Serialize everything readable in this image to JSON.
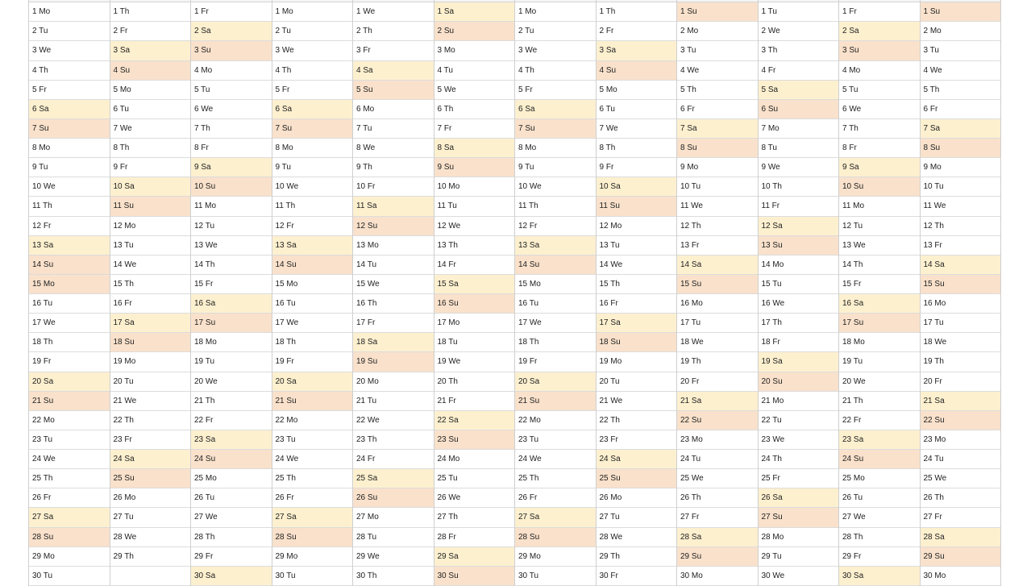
{
  "colors": {
    "saturday": "#fdf0cf",
    "sunday": "#f9e1cb",
    "holiday": "#f9e1cb",
    "grid": "#cfcfcf"
  },
  "months": [
    {
      "highlighted": [
        "15 Mo"
      ],
      "days": [
        "1 Mo",
        "2 Tu",
        "3 We",
        "4 Th",
        "5 Fr",
        "6 Sa",
        "7 Su",
        "8 Mo",
        "9 Tu",
        "10 We",
        "11 Th",
        "12 Fr",
        "13 Sa",
        "14 Su",
        "15 Mo",
        "16 Tu",
        "17 We",
        "18 Th",
        "19 Fr",
        "20 Sa",
        "21 Su",
        "22 Mo",
        "23 Tu",
        "24 We",
        "25 Th",
        "26 Fr",
        "27 Sa",
        "28 Su",
        "29 Mo",
        "30 Tu"
      ]
    },
    {
      "highlighted": [],
      "days": [
        "1 Th",
        "2 Fr",
        "3 Sa",
        "4 Su",
        "5 Mo",
        "6 Tu",
        "7 We",
        "8 Th",
        "9 Fr",
        "10 Sa",
        "11 Su",
        "12 Mo",
        "13 Tu",
        "14 We",
        "15 Th",
        "16 Fr",
        "17 Sa",
        "18 Su",
        "19 Mo",
        "20 Tu",
        "21 We",
        "22 Th",
        "23 Fr",
        "24 Sa",
        "25 Su",
        "26 Mo",
        "27 Tu",
        "28 We",
        "29 Th"
      ]
    },
    {
      "highlighted": [],
      "days": [
        "1 Fr",
        "2 Sa",
        "3 Su",
        "4 Mo",
        "5 Tu",
        "6 We",
        "7 Th",
        "8 Fr",
        "9 Sa",
        "10 Su",
        "11 Mo",
        "12 Tu",
        "13 We",
        "14 Th",
        "15 Fr",
        "16 Sa",
        "17 Su",
        "18 Mo",
        "19 Tu",
        "20 We",
        "21 Th",
        "22 Fr",
        "23 Sa",
        "24 Su",
        "25 Mo",
        "26 Tu",
        "27 We",
        "28 Th",
        "29 Fr",
        "30 Sa"
      ]
    },
    {
      "highlighted": [],
      "days": [
        "1 Mo",
        "2 Tu",
        "3 We",
        "4 Th",
        "5 Fr",
        "6 Sa",
        "7 Su",
        "8 Mo",
        "9 Tu",
        "10 We",
        "11 Th",
        "12 Fr",
        "13 Sa",
        "14 Su",
        "15 Mo",
        "16 Tu",
        "17 We",
        "18 Th",
        "19 Fr",
        "20 Sa",
        "21 Su",
        "22 Mo",
        "23 Tu",
        "24 We",
        "25 Th",
        "26 Fr",
        "27 Sa",
        "28 Su",
        "29 Mo",
        "30 Tu"
      ]
    },
    {
      "highlighted": [],
      "days": [
        "1 We",
        "2 Th",
        "3 Fr",
        "4 Sa",
        "5 Su",
        "6 Mo",
        "7 Tu",
        "8 We",
        "9 Th",
        "10 Fr",
        "11 Sa",
        "12 Su",
        "13 Mo",
        "14 Tu",
        "15 We",
        "16 Th",
        "17 Fr",
        "18 Sa",
        "19 Su",
        "20 Mo",
        "21 Tu",
        "22 We",
        "23 Th",
        "24 Fr",
        "25 Sa",
        "26 Su",
        "27 Mo",
        "28 Tu",
        "29 We",
        "30 Th"
      ]
    },
    {
      "highlighted": [],
      "days": [
        "1 Sa",
        "2 Su",
        "3 Mo",
        "4 Tu",
        "5 We",
        "6 Th",
        "7 Fr",
        "8 Sa",
        "9 Su",
        "10 Mo",
        "11 Tu",
        "12 We",
        "13 Th",
        "14 Fr",
        "15 Sa",
        "16 Su",
        "17 Mo",
        "18 Tu",
        "19 We",
        "20 Th",
        "21 Fr",
        "22 Sa",
        "23 Su",
        "24 Mo",
        "25 Tu",
        "26 We",
        "27 Th",
        "28 Fr",
        "29 Sa",
        "30 Su"
      ]
    },
    {
      "highlighted": [],
      "days": [
        "1 Mo",
        "2 Tu",
        "3 We",
        "4 Th",
        "5 Fr",
        "6 Sa",
        "7 Su",
        "8 Mo",
        "9 Tu",
        "10 We",
        "11 Th",
        "12 Fr",
        "13 Sa",
        "14 Su",
        "15 Mo",
        "16 Tu",
        "17 We",
        "18 Th",
        "19 Fr",
        "20 Sa",
        "21 Su",
        "22 Mo",
        "23 Tu",
        "24 We",
        "25 Th",
        "26 Fr",
        "27 Sa",
        "28 Su",
        "29 Mo",
        "30 Tu"
      ]
    },
    {
      "highlighted": [],
      "days": [
        "1 Th",
        "2 Fr",
        "3 Sa",
        "4 Su",
        "5 Mo",
        "6 Tu",
        "7 We",
        "8 Th",
        "9 Fr",
        "10 Sa",
        "11 Su",
        "12 Mo",
        "13 Tu",
        "14 We",
        "15 Th",
        "16 Fr",
        "17 Sa",
        "18 Su",
        "19 Mo",
        "20 Tu",
        "21 We",
        "22 Th",
        "23 Fr",
        "24 Sa",
        "25 Su",
        "26 Mo",
        "27 Tu",
        "28 We",
        "29 Th",
        "30 Fr"
      ]
    },
    {
      "highlighted": [],
      "days": [
        "1 Su",
        "2 Mo",
        "3 Tu",
        "4 We",
        "5 Th",
        "6 Fr",
        "7 Sa",
        "8 Su",
        "9 Mo",
        "10 Tu",
        "11 We",
        "12 Th",
        "13 Fr",
        "14 Sa",
        "15 Su",
        "16 Mo",
        "17 Tu",
        "18 We",
        "19 Th",
        "20 Fr",
        "21 Sa",
        "22 Su",
        "23 Mo",
        "24 Tu",
        "25 We",
        "26 Th",
        "27 Fr",
        "28 Sa",
        "29 Su",
        "30 Mo"
      ]
    },
    {
      "highlighted": [],
      "days": [
        "1 Tu",
        "2 We",
        "3 Th",
        "4 Fr",
        "5 Sa",
        "6 Su",
        "7 Mo",
        "8 Tu",
        "9 We",
        "10 Th",
        "11 Fr",
        "12 Sa",
        "13 Su",
        "14 Mo",
        "15 Tu",
        "16 We",
        "17 Th",
        "18 Fr",
        "19 Sa",
        "20 Su",
        "21 Mo",
        "22 Tu",
        "23 We",
        "24 Th",
        "25 Fr",
        "26 Sa",
        "27 Su",
        "28 Mo",
        "29 Tu",
        "30 We"
      ]
    },
    {
      "highlighted": [],
      "days": [
        "1 Fr",
        "2 Sa",
        "3 Su",
        "4 Mo",
        "5 Tu",
        "6 We",
        "7 Th",
        "8 Fr",
        "9 Sa",
        "10 Su",
        "11 Mo",
        "12 Tu",
        "13 We",
        "14 Th",
        "15 Fr",
        "16 Sa",
        "17 Su",
        "18 Mo",
        "19 Tu",
        "20 We",
        "21 Th",
        "22 Fr",
        "23 Sa",
        "24 Su",
        "25 Mo",
        "26 Tu",
        "27 We",
        "28 Th",
        "29 Fr",
        "30 Sa"
      ]
    },
    {
      "highlighted": [],
      "days": [
        "1 Su",
        "2 Mo",
        "3 Tu",
        "4 We",
        "5 Th",
        "6 Fr",
        "7 Sa",
        "8 Su",
        "9 Mo",
        "10 Tu",
        "11 We",
        "12 Th",
        "13 Fr",
        "14 Sa",
        "15 Su",
        "16 Mo",
        "17 Tu",
        "18 We",
        "19 Th",
        "20 Fr",
        "21 Sa",
        "22 Su",
        "23 Mo",
        "24 Tu",
        "25 We",
        "26 Th",
        "27 Fr",
        "28 Sa",
        "29 Su",
        "30 Mo"
      ]
    }
  ]
}
